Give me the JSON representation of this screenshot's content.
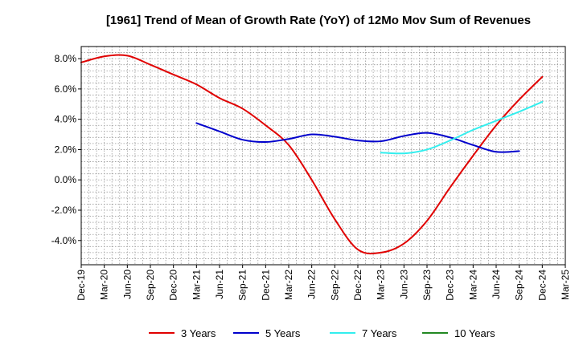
{
  "chart_data": {
    "type": "line",
    "title": "[1961]  Trend of Mean of Growth Rate (YoY) of 12Mo Mov Sum of Revenues",
    "xlabel": "",
    "ylabel": "",
    "ylim": [
      -5.6,
      8.8
    ],
    "ytick_values": [
      -4,
      -2,
      0,
      2,
      4,
      6,
      8
    ],
    "ytick_labels": [
      "-4.0%",
      "-2.0%",
      "0.0%",
      "2.0%",
      "4.0%",
      "6.0%",
      "8.0%"
    ],
    "x_labels": [
      "Dec-19",
      "Mar-20",
      "Jun-20",
      "Sep-20",
      "Dec-20",
      "Mar-21",
      "Jun-21",
      "Sep-21",
      "Dec-21",
      "Mar-22",
      "Jun-22",
      "Sep-22",
      "Dec-22",
      "Mar-23",
      "Jun-23",
      "Sep-23",
      "Dec-23",
      "Mar-24",
      "Jun-24",
      "Sep-24",
      "Dec-24",
      "Mar-25"
    ],
    "grid": true,
    "legend_position": "bottom",
    "series": [
      {
        "name": "3 Years",
        "color": "#e00000",
        "start": 0,
        "values": [
          7.75,
          8.15,
          8.2,
          7.6,
          6.95,
          6.3,
          5.4,
          4.7,
          3.6,
          2.3,
          0.0,
          -2.6,
          -4.6,
          -4.8,
          -4.2,
          -2.7,
          -0.5,
          1.6,
          3.6,
          5.3,
          6.8
        ]
      },
      {
        "name": "5 Years",
        "color": "#0000cc",
        "start": 5,
        "values": [
          3.75,
          3.2,
          2.65,
          2.5,
          2.7,
          3.0,
          2.85,
          2.6,
          2.55,
          2.9,
          3.1,
          2.8,
          2.3,
          1.85,
          1.9
        ]
      },
      {
        "name": "7 Years",
        "color": "#33eeee",
        "start": 13,
        "values": [
          1.8,
          1.75,
          2.0,
          2.6,
          3.3,
          3.9,
          4.5,
          5.15
        ]
      },
      {
        "name": "10 Years",
        "color": "#228822",
        "start": null,
        "values": []
      }
    ]
  }
}
